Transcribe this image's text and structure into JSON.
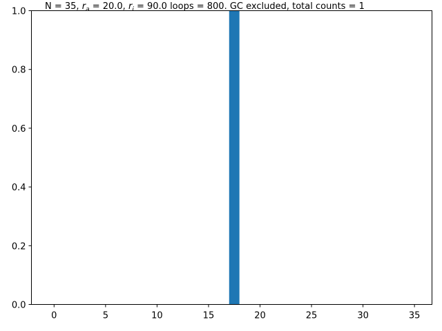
{
  "chart_data": {
    "type": "bar",
    "title": {
      "seg1": "N = 35, ",
      "ra_base": "r",
      "ra_sub": "a",
      "seg2": " = 20.0, ",
      "ri_base": "r",
      "ri_sub": "i",
      "seg3": " = 90.0 loops = 800. GC excluded, total counts = 1"
    },
    "xlabel": "",
    "ylabel": "",
    "xlim": [
      -2.2,
      36.7
    ],
    "ylim": [
      0,
      1.0
    ],
    "xticks": [
      0,
      5,
      10,
      15,
      20,
      25,
      30,
      35
    ],
    "yticks": [
      0.0,
      0.2,
      0.4,
      0.6,
      0.8,
      1.0
    ],
    "ytick_labels": [
      "0.0",
      "0.2",
      "0.4",
      "0.6",
      "0.8",
      "1.0"
    ],
    "bar_color": "#1f77b4",
    "x": [
      0,
      1,
      2,
      3,
      4,
      5,
      6,
      7,
      8,
      9,
      10,
      11,
      12,
      13,
      14,
      15,
      16,
      17,
      18,
      19,
      20,
      21,
      22,
      23,
      24,
      25,
      26,
      27,
      28,
      29,
      30,
      31,
      32,
      33,
      34,
      35
    ],
    "values": [
      0,
      0,
      0,
      0,
      0,
      0,
      0,
      0,
      0,
      0,
      0,
      0,
      0,
      0,
      0,
      0,
      0,
      1,
      0,
      0,
      0,
      0,
      0,
      0,
      0,
      0,
      0,
      0,
      0,
      0,
      0,
      0,
      0,
      0,
      0,
      0
    ],
    "bar_width": 1,
    "grid": false,
    "legend": false
  }
}
